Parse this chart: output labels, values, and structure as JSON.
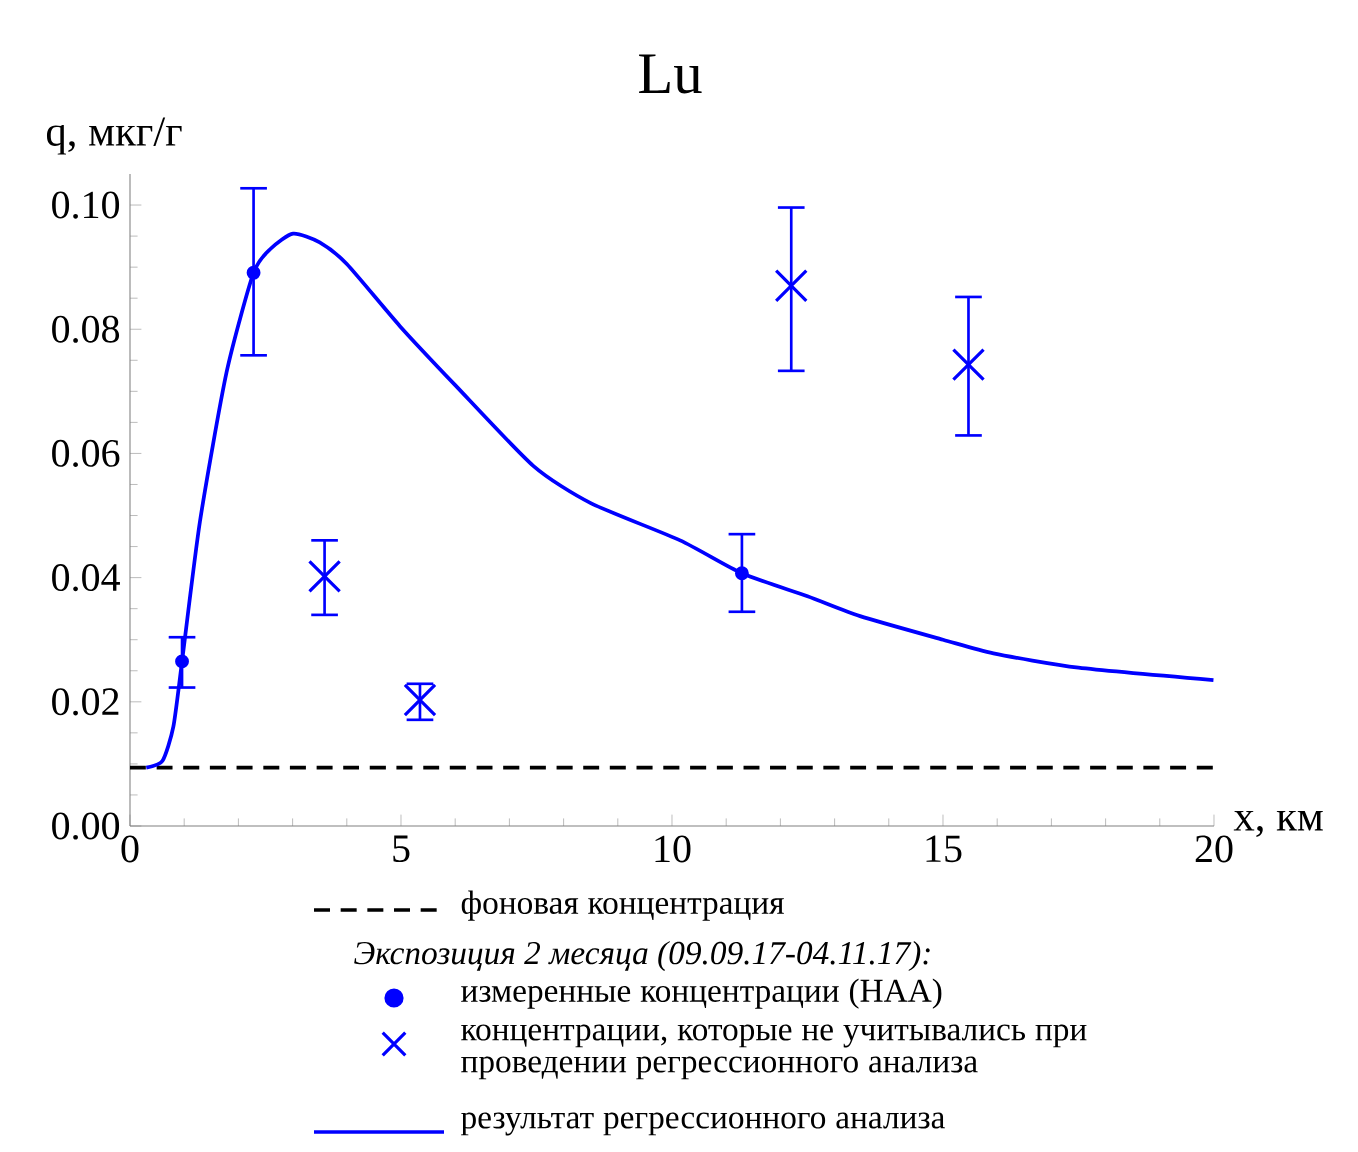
{
  "chart_data": {
    "type": "scatter",
    "title": "Lu",
    "xlabel": "x, км",
    "ylabel": "q, мкг/г",
    "legend_title": "*Экспозиция 2 месяца (09.09.17-04.11.17):*",
    "xlim": [
      0,
      20
    ],
    "ylim": [
      0,
      0.105
    ],
    "xticks": [
      0,
      5,
      10,
      15,
      20
    ],
    "yticks": [
      {
        "value": 0,
        "label": "0.00"
      },
      {
        "value": 0.02,
        "label": "0.02"
      },
      {
        "value": 0.04,
        "label": "0.04"
      },
      {
        "value": 0.06,
        "label": "0.06"
      },
      {
        "value": 0.08,
        "label": "0.08"
      },
      {
        "value": 0.1,
        "label": "0.10"
      }
    ],
    "grid": false,
    "legend": "bottom",
    "series": [
      {
        "name": "фоновая концентрация",
        "type": "line",
        "color": "#000000",
        "line_style": "dashed",
        "marker": "none",
        "x": [
          0,
          20
        ],
        "values": [
          0.0094,
          0.0094
        ]
      },
      {
        "name": "измеренные концентрации (НАА)",
        "color": "#0000ff",
        "marker": "circle",
        "x": [
          0.96,
          2.28,
          11.29
        ],
        "values": [
          0.0265,
          0.0891,
          0.0407
        ],
        "errors": [
          [
            0.0223,
            0.0304
          ],
          [
            0.0758,
            0.1027
          ],
          [
            0.0345,
            0.047
          ]
        ]
      },
      {
        "name": "концентрации, которые не учитывались при проведении регрессионного анализа",
        "color": "#0000ff",
        "marker": "cross",
        "x": [
          3.59,
          5.35,
          12.2,
          15.47
        ],
        "values": [
          0.0402,
          0.0203,
          0.087,
          0.0743
        ],
        "errors": [
          [
            0.034,
            0.046
          ],
          [
            0.0171,
            0.0229
          ],
          [
            0.0733,
            0.0996
          ],
          [
            0.0629,
            0.0852
          ]
        ]
      },
      {
        "name": "результат регрессионного анализа",
        "type": "line",
        "color": "#0000ff",
        "line_style": "solid",
        "marker": "none",
        "x": [
          0.3,
          0.6,
          0.8,
          0.96,
          1.29,
          1.78,
          2.28,
          2.6,
          3.01,
          3.5,
          4.0,
          4.98,
          6.0,
          7.44,
          8.5,
          10.15,
          11.29,
          12.5,
          13.47,
          15.0,
          15.93,
          17.5,
          19.99
        ],
        "values": [
          0.0094,
          0.0105,
          0.016,
          0.0265,
          0.049,
          0.073,
          0.0891,
          0.093,
          0.0954,
          0.094,
          0.0905,
          0.0805,
          0.071,
          0.058,
          0.052,
          0.046,
          0.0407,
          0.037,
          0.0338,
          0.03,
          0.0278,
          0.0255,
          0.0235
        ]
      }
    ]
  }
}
